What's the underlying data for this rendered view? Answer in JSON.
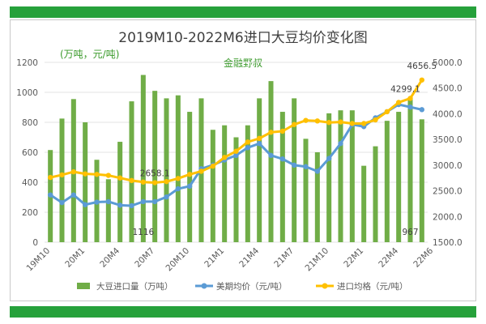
{
  "chart_data": {
    "type": "bar+line",
    "title": "2019M10-2022M6进口大豆均价变化图",
    "unit_label": "(万吨，元/吨)",
    "watermark": "金融野叔",
    "x_tick_labels": [
      "19M10",
      "20M1",
      "20M4",
      "20M7",
      "20M10",
      "21M1",
      "21M4",
      "21M7",
      "21M10",
      "22M1",
      "22M4",
      "22M6"
    ],
    "y_left": {
      "min": 0,
      "max": 1200,
      "ticks": [
        "0",
        "200",
        "400",
        "600",
        "800",
        "1000",
        "1200"
      ]
    },
    "y_right": {
      "min": 1500,
      "max": 5000,
      "ticks": [
        "1500.0",
        "2000.0",
        "2500.0",
        "3000.0",
        "3500.0",
        "4000.0",
        "4500.0",
        "5000.0"
      ]
    },
    "periods": 33,
    "series": [
      {
        "name": "大豆进口量（万吨）",
        "kind": "bar",
        "axis": "left",
        "color": "#70ad47",
        "values": [
          615,
          825,
          955,
          800,
          550,
          420,
          670,
          940,
          1116,
          1010,
          960,
          980,
          870,
          960,
          750,
          780,
          700,
          780,
          960,
          1075,
          870,
          960,
          690,
          600,
          860,
          880,
          880,
          510,
          640,
          810,
          870,
          967,
          820
        ]
      },
      {
        "name": "美期均价（元/吨）",
        "kind": "line",
        "axis": "right",
        "color": "#5b9bd5",
        "values": [
          2420,
          2270,
          2420,
          2230,
          2280,
          2290,
          2220,
          2210,
          2290,
          2290,
          2380,
          2540,
          2590,
          2930,
          3000,
          3100,
          3190,
          3340,
          3420,
          3190,
          3120,
          3000,
          2970,
          2880,
          3130,
          3420,
          3790,
          3750,
          3920,
          4040,
          4180,
          4130,
          4080
        ]
      },
      {
        "name": "进口均格（元/吨）",
        "kind": "line",
        "axis": "right",
        "color": "#ffc000",
        "values": [
          2760,
          2810,
          2870,
          2830,
          2820,
          2800,
          2750,
          2700,
          2670,
          2658.1,
          2680,
          2740,
          2820,
          2880,
          2980,
          3150,
          3270,
          3450,
          3520,
          3640,
          3660,
          3790,
          3870,
          3860,
          3830,
          3840,
          3810,
          3810,
          3880,
          4040,
          4220,
          4299.1,
          4656.5
        ]
      }
    ],
    "data_labels": [
      {
        "series": 2,
        "index": 9,
        "text": "2658.1"
      },
      {
        "series": 2,
        "index": 31,
        "text": "4299.1"
      },
      {
        "series": 2,
        "index": 32,
        "text": "4656.5"
      },
      {
        "series": 0,
        "index": 8,
        "text": "1116"
      },
      {
        "series": 0,
        "index": 31,
        "text": "967"
      }
    ]
  }
}
